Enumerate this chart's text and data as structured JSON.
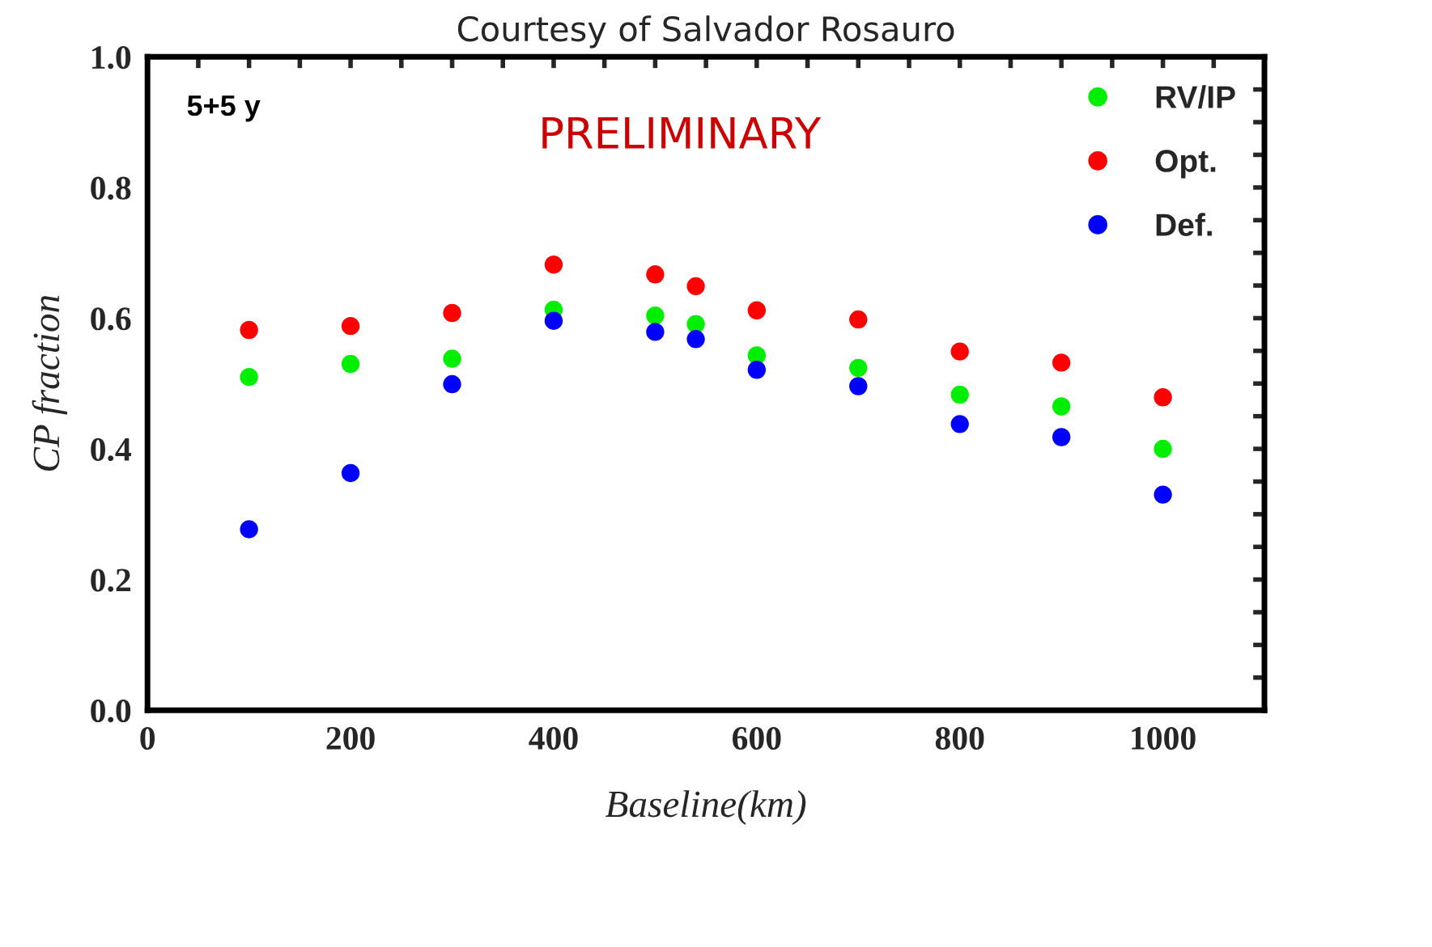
{
  "chart_data": {
    "type": "scatter",
    "title": "Courtesy of Salvador Rosauro",
    "xlabel": "Baseline(km)",
    "ylabel": "CP fraction",
    "annotations": [
      "5+5 y",
      "PRELIMINARY"
    ],
    "x": [
      100,
      200,
      300,
      400,
      500,
      540,
      600,
      700,
      800,
      900,
      1000
    ],
    "series": [
      {
        "name": "RV/IP",
        "color": "#00ee00",
        "values": [
          0.51,
          0.53,
          0.538,
          0.613,
          0.604,
          0.591,
          0.543,
          0.524,
          0.483,
          0.465,
          0.4
        ]
      },
      {
        "name": "Opt.",
        "color": "#ff0000",
        "values": [
          0.582,
          0.588,
          0.608,
          0.682,
          0.667,
          0.649,
          0.612,
          0.598,
          0.549,
          0.532,
          0.479
        ]
      },
      {
        "name": "Def.",
        "color": "#0000ff",
        "values": [
          0.277,
          0.363,
          0.499,
          0.596,
          0.579,
          0.568,
          0.521,
          0.496,
          0.438,
          0.418,
          0.33
        ]
      }
    ],
    "xlim": [
      0,
      1100
    ],
    "ylim": [
      0,
      1.0
    ],
    "xticks": [
      0,
      {
        "value": 50,
        "label": null
      },
      200,
      {
        "value": 100,
        "label": null
      },
      {
        "value": 150,
        "label": null
      },
      {
        "value": 250,
        "label": null
      },
      {
        "value": 300,
        "label": null
      },
      {
        "value": 350,
        "label": null
      },
      400,
      {
        "value": 450,
        "label": null
      },
      {
        "value": 500,
        "label": null
      },
      {
        "value": 550,
        "label": null
      },
      600,
      {
        "value": 650,
        "label": null
      },
      {
        "value": 700,
        "label": null
      },
      {
        "value": 750,
        "label": null
      },
      800,
      {
        "value": 850,
        "label": null
      },
      {
        "value": 900,
        "label": null
      },
      {
        "value": 950,
        "label": null
      },
      1000,
      {
        "value": 1050,
        "label": null
      }
    ],
    "yticks": [
      {
        "value": 0,
        "label": "0.0"
      },
      {
        "value": 0.05,
        "label": null
      },
      {
        "value": 0.1,
        "label": null
      },
      {
        "value": 0.15,
        "label": null
      },
      {
        "value": 0.2,
        "label": "0.2"
      },
      {
        "value": 0.25,
        "label": null
      },
      {
        "value": 0.3,
        "label": null
      },
      {
        "value": 0.35,
        "label": null
      },
      {
        "value": 0.4,
        "label": "0.4"
      },
      {
        "value": 0.45,
        "label": null
      },
      {
        "value": 0.5,
        "label": null
      },
      {
        "value": 0.55,
        "label": null
      },
      {
        "value": 0.6,
        "label": "0.6"
      },
      {
        "value": 0.65,
        "label": null
      },
      {
        "value": 0.7,
        "label": null
      },
      {
        "value": 0.75,
        "label": null
      },
      {
        "value": 0.8,
        "label": "0.8"
      },
      {
        "value": 0.85,
        "label": null
      },
      {
        "value": 0.9,
        "label": null
      },
      {
        "value": 0.95,
        "label": null
      },
      {
        "value": 1.0,
        "label": "1.0"
      }
    ],
    "grid": false,
    "legend": "top right",
    "marker": "circle"
  }
}
